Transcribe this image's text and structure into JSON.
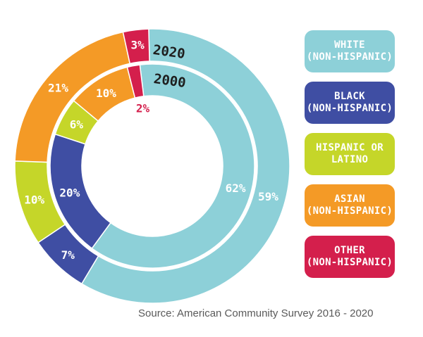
{
  "chart_data": {
    "type": "pie",
    "variant": "nested-donut",
    "categories": [
      "WHITE (NON-HISPANIC)",
      "BLACK (NON-HISPANIC)",
      "HISPANIC OR LATINO",
      "ASIAN (NON-HISPANIC)",
      "OTHER (NON-HISPANIC)"
    ],
    "series": [
      {
        "name": "2020",
        "ring": "outer",
        "values": [
          59,
          7,
          10,
          21,
          3
        ],
        "labels": [
          "59%",
          "7%",
          "10%",
          "21%",
          "3%"
        ]
      },
      {
        "name": "2000",
        "ring": "inner",
        "values": [
          62,
          20,
          6,
          10,
          2
        ],
        "labels": [
          "62%",
          "20%",
          "6%",
          "10%",
          "2%"
        ]
      }
    ],
    "colors": [
      "#8dd0d8",
      "#3f4ea3",
      "#c5d629",
      "#f49a26",
      "#d41f4c"
    ],
    "legend": {
      "placement": "right",
      "items": [
        {
          "line1": "WHITE",
          "line2": "(NON-HISPANIC)",
          "color": "#8dd0d8"
        },
        {
          "line1": "BLACK",
          "line2": "(NON-HISPANIC)",
          "color": "#3f4ea3"
        },
        {
          "line1": "HISPANIC OR",
          "line2": "LATINO",
          "color": "#c5d629"
        },
        {
          "line1": "ASIAN",
          "line2": "(NON-HISPANIC)",
          "color": "#f49a26"
        },
        {
          "line1": "OTHER",
          "line2": "(NON-HISPANIC)",
          "color": "#d41f4c"
        }
      ]
    },
    "source": "Source: American Community Survey 2016 - 2020"
  }
}
